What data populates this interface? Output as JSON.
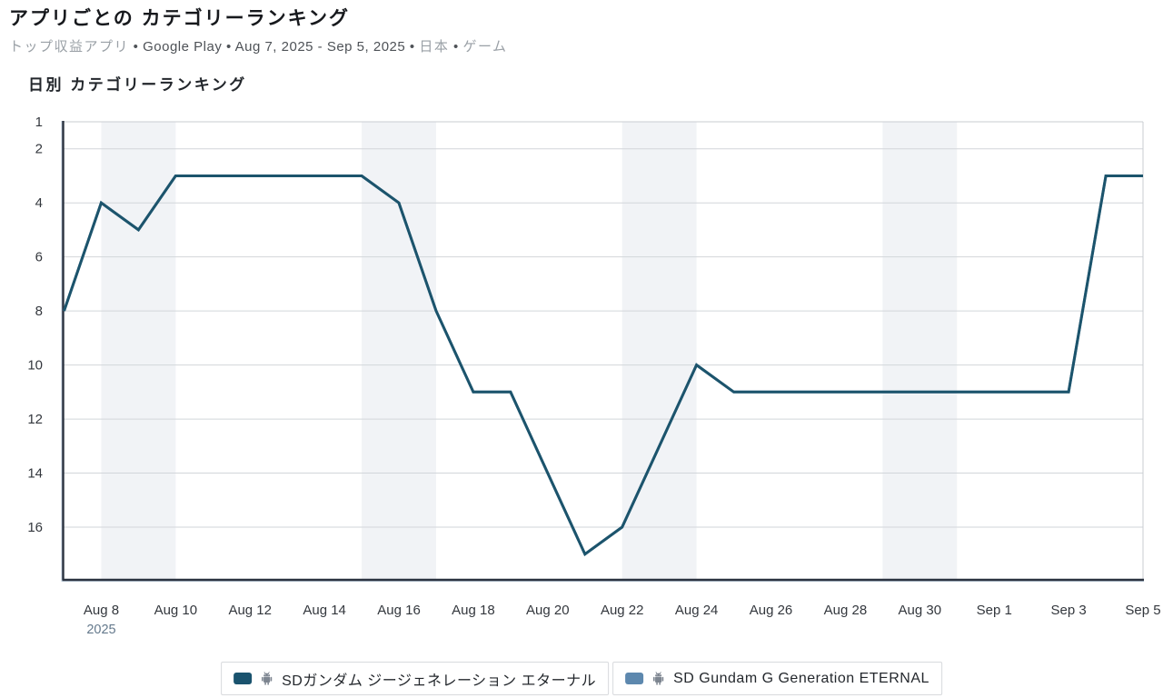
{
  "page": {
    "title": "アプリごとの カテゴリーランキング",
    "subtitle_segments": [
      {
        "text": "トップ収益アプリ",
        "muted": true
      },
      {
        "text": " • ",
        "muted": false
      },
      {
        "text": "Google Play",
        "muted": false
      },
      {
        "text": " • ",
        "muted": false
      },
      {
        "text": "Aug 7, 2025 - Sep 5, 2025",
        "muted": false
      },
      {
        "text": " • ",
        "muted": false
      },
      {
        "text": "日本",
        "muted": true
      },
      {
        "text": " • ",
        "muted": false
      },
      {
        "text": "ゲーム",
        "muted": true
      }
    ]
  },
  "chart_data": {
    "type": "line",
    "title": "日別 カテゴリーランキング",
    "x": [
      "Aug 7",
      "Aug 8",
      "Aug 9",
      "Aug 10",
      "Aug 11",
      "Aug 12",
      "Aug 13",
      "Aug 14",
      "Aug 15",
      "Aug 16",
      "Aug 17",
      "Aug 18",
      "Aug 19",
      "Aug 20",
      "Aug 21",
      "Aug 22",
      "Aug 23",
      "Aug 24",
      "Aug 25",
      "Aug 26",
      "Aug 27",
      "Aug 28",
      "Aug 29",
      "Aug 30",
      "Aug 31",
      "Sep 1",
      "Sep 2",
      "Sep 3",
      "Sep 4",
      "Sep 5"
    ],
    "series": [
      {
        "name": "SDガンダム ジージェネレーション エターナル",
        "color": "#1c546c",
        "values": [
          8,
          4,
          5,
          3,
          3,
          3,
          3,
          3,
          3,
          4,
          8,
          11,
          11,
          14,
          17,
          16,
          13,
          10,
          11,
          11,
          11,
          11,
          11,
          11,
          11,
          11,
          11,
          11,
          3,
          3
        ]
      },
      {
        "name": "SD Gundam G Generation ETERNAL",
        "color": "#5d88ae",
        "values": [
          8,
          4,
          5,
          3,
          3,
          3,
          3,
          3,
          3,
          4,
          8,
          11,
          11,
          14,
          17,
          16,
          13,
          10,
          11,
          11,
          11,
          11,
          11,
          11,
          11,
          11,
          11,
          11,
          3,
          3
        ]
      }
    ],
    "xlabel": "",
    "ylabel": "",
    "y_inverted": true,
    "y_ticks": [
      1,
      2,
      4,
      6,
      8,
      10,
      12,
      14,
      16
    ],
    "y_range": [
      1,
      17.9
    ],
    "x_tick_labels": [
      "Aug 8",
      "Aug 10",
      "Aug 12",
      "Aug 14",
      "Aug 16",
      "Aug 18",
      "Aug 20",
      "Aug 22",
      "Aug 24",
      "Aug 26",
      "Aug 28",
      "Aug 30",
      "Sep 1",
      "Sep 3",
      "Sep 5"
    ],
    "x_year_label": "2025",
    "grid": true,
    "legend_position": "bottom",
    "weekend_bands": [
      [
        "Aug 8",
        "Aug 10"
      ],
      [
        "Aug 15",
        "Aug 17"
      ],
      [
        "Aug 22",
        "Aug 24"
      ],
      [
        "Aug 29",
        "Aug 31"
      ]
    ],
    "weekend_band_color": "#f1f3f6",
    "gridline_color": "#d2d6da",
    "axis_frame_dark_color": "#2b3340",
    "axis_frame_light_color": "#c9ccd1",
    "tick_label_color": "#33373d",
    "year_label_color": "#64798c"
  },
  "legend": {
    "items": [
      {
        "label": "SDガンダム ジージェネレーション エターナル",
        "color": "#1a536e",
        "icon": "android-icon"
      },
      {
        "label": "SD Gundam G Generation ETERNAL",
        "color": "#5d88ae",
        "icon": "android-icon"
      }
    ]
  }
}
